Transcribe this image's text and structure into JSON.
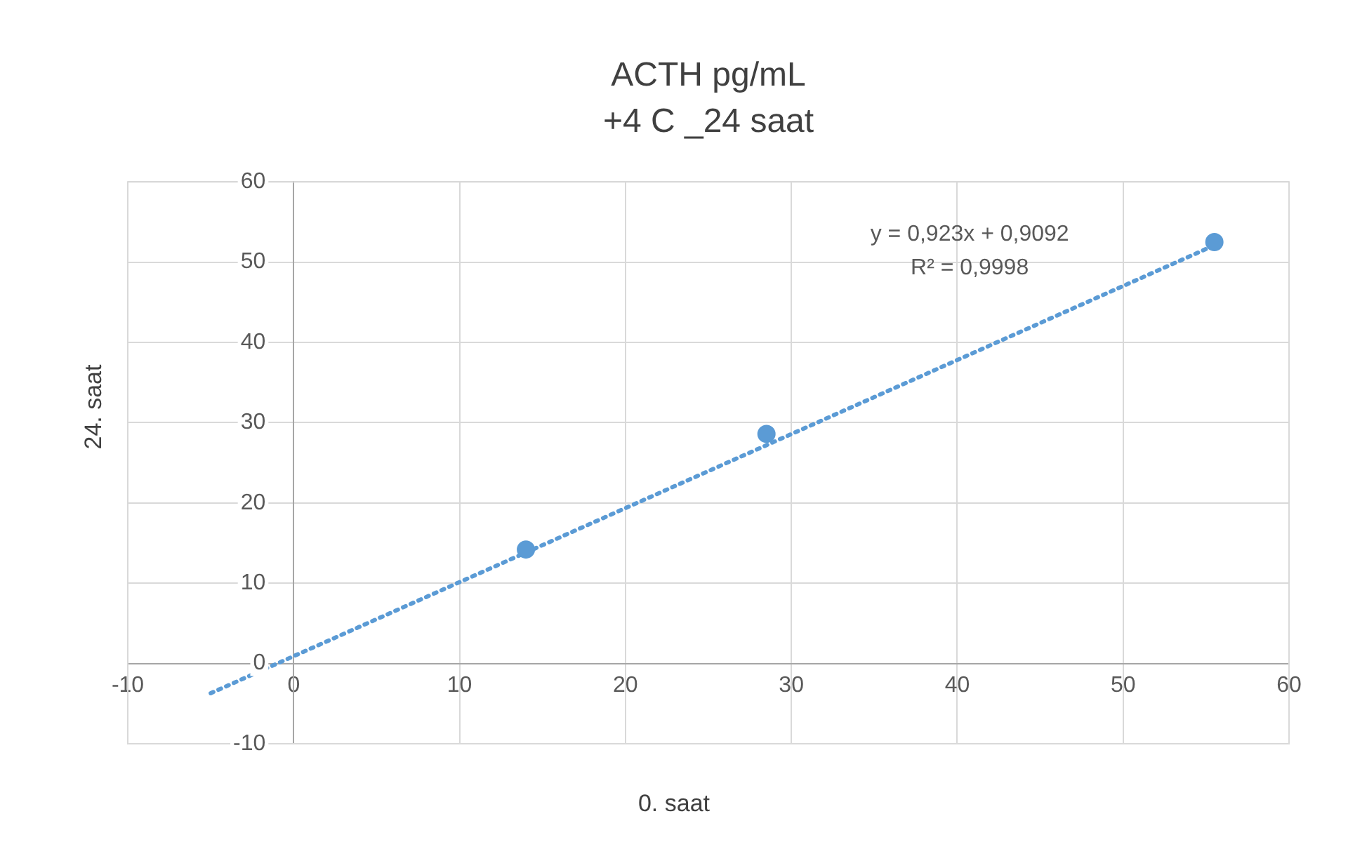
{
  "chart_data": {
    "type": "scatter",
    "title": "ACTH pg/mL",
    "subtitle": "+4 C _24 saat",
    "xlabel": "0. saat",
    "ylabel": "24. saat",
    "annotations": [
      "y = 0,923x + 0,9092",
      "R² = 0,9998"
    ],
    "series": [
      {
        "color": "#5b9bd5",
        "marker": "circle",
        "x": [
          14,
          28.5,
          55.5
        ],
        "values": [
          14.2,
          28.6,
          52.5
        ]
      },
      {
        "type": "line",
        "color": "#5b9bd5",
        "line_style": "dotted",
        "marker": "none",
        "x": [
          -5,
          55.5
        ],
        "values": [
          -3.7,
          52.1
        ]
      }
    ],
    "grid": true,
    "xlim": [
      -10,
      60
    ],
    "ylim": [
      -10,
      60
    ],
    "xticks": [
      -10,
      0,
      10,
      20,
      30,
      40,
      50,
      60
    ],
    "yticks": [
      -10,
      0,
      10,
      20,
      30,
      40,
      50,
      60
    ]
  }
}
